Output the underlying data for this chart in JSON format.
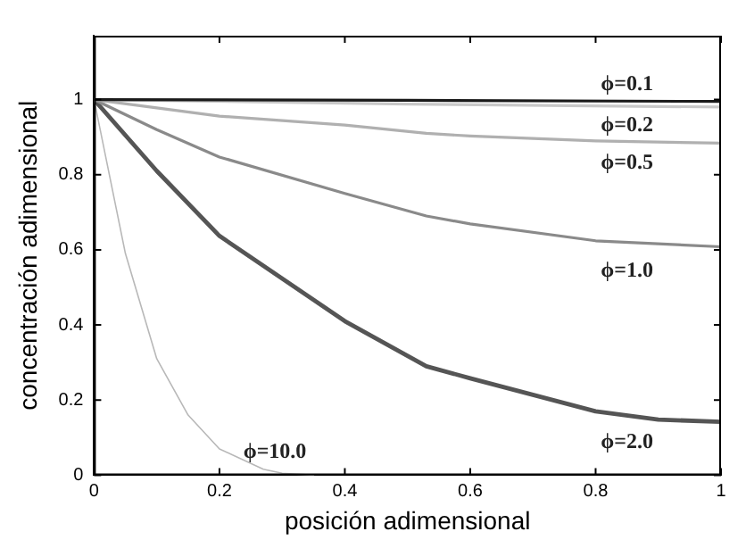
{
  "chart_data": {
    "type": "line",
    "xlabel": "posición adimensional",
    "ylabel": "concentración adimensional",
    "xlim": [
      0,
      1
    ],
    "ylim": [
      0,
      1.17
    ],
    "xticks": [
      0,
      0.2,
      0.4,
      0.6,
      0.8,
      1
    ],
    "yticks": [
      0,
      0.2,
      0.4,
      0.6,
      0.8,
      1
    ],
    "grid": false,
    "legend": false,
    "marker": "none",
    "line_style": "solid",
    "series": [
      {
        "name": "ϕ=0.1",
        "color": "#1a1a1a",
        "x": [
          0,
          0.5,
          1
        ],
        "values": [
          1,
          0.998,
          0.995
        ]
      },
      {
        "name": "ϕ=0.2",
        "color": "#c8c8c8",
        "x": [
          0,
          0.5,
          1
        ],
        "values": [
          1,
          0.988,
          0.98
        ]
      },
      {
        "name": "ϕ=0.5",
        "color": "#b0b0b0",
        "x": [
          0,
          0.2,
          0.4,
          0.53,
          0.6,
          0.8,
          1
        ],
        "values": [
          1,
          0.956,
          0.932,
          0.91,
          0.903,
          0.89,
          0.884
        ]
      },
      {
        "name": "ϕ=1.0",
        "color": "#8a8a8a",
        "x": [
          0,
          0.1,
          0.2,
          0.4,
          0.53,
          0.6,
          0.8,
          1
        ],
        "values": [
          1,
          0.92,
          0.847,
          0.75,
          0.69,
          0.669,
          0.624,
          0.608
        ]
      },
      {
        "name": "ϕ=2.0",
        "color": "#555555",
        "x": [
          0,
          0.1,
          0.2,
          0.4,
          0.53,
          0.6,
          0.8,
          0.9,
          1
        ],
        "values": [
          1,
          0.81,
          0.637,
          0.41,
          0.29,
          0.258,
          0.17,
          0.148,
          0.142
        ]
      },
      {
        "name": "ϕ=10.0",
        "color": "#b8b8b8",
        "x": [
          0,
          0.05,
          0.1,
          0.15,
          0.2,
          0.27,
          0.3,
          0.35
        ],
        "values": [
          1,
          0.59,
          0.31,
          0.16,
          0.07,
          0.016,
          0.005,
          0
        ]
      }
    ]
  }
}
